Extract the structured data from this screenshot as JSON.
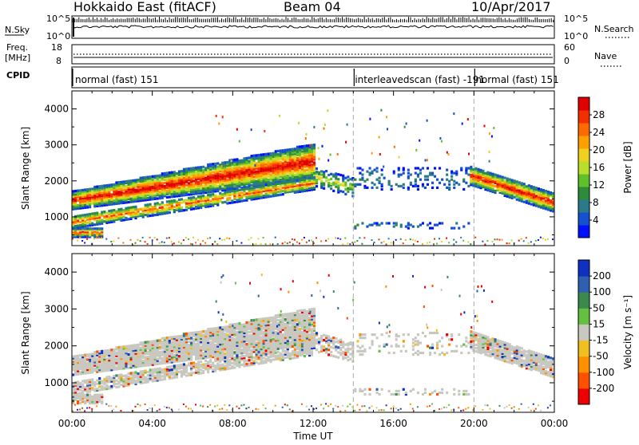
{
  "header": {
    "station": "Hokkaido East (fitACF)",
    "beam": "Beam 04",
    "date": "10/Apr/2017"
  },
  "strips": {
    "nsky_label": "N.Sky",
    "nsky_top": "10^5",
    "nsky_bottom": "10^0",
    "nsearch_label": "N.Search",
    "nsearch_top": "10^5",
    "nsearch_bottom": "10^0",
    "freq_label_1": "Freq.",
    "freq_label_2": "[MHz]",
    "freq_top": "18",
    "freq_bottom": "8",
    "nave_label": "Nave",
    "nave_top": "60",
    "nave_bottom": "0",
    "cpid_label": "CPID",
    "modes": [
      {
        "label": "normal (fast) 151",
        "start_hour": 0
      },
      {
        "label": "interleavedscan (fast) -191",
        "start_hour": 14
      },
      {
        "label": "normal (fast) 151",
        "start_hour": 20
      }
    ]
  },
  "chart_data": [
    {
      "type": "heatmap",
      "name": "power-panel",
      "ylabel": "Slant Range [km]",
      "xlabel": "Time UT",
      "xlim": [
        0,
        24
      ],
      "ylim": [
        200,
        4500
      ],
      "x_ticks": [
        "00:00",
        "04:00",
        "08:00",
        "12:00",
        "16:00",
        "20:00",
        "00:00"
      ],
      "y_ticks": [
        1000,
        2000,
        3000,
        4000
      ],
      "colorbar": {
        "label": "Power [dB]",
        "ticks": [
          "4",
          "8",
          "12",
          "16",
          "20",
          "24",
          "28"
        ],
        "colors": [
          "#0010ff",
          "#1550d0",
          "#2a7a8a",
          "#2e8b3c",
          "#5fc02a",
          "#b8e02a",
          "#f0d020",
          "#ffa000",
          "#ff6a00",
          "#f03000",
          "#e00000"
        ]
      },
      "mode_boundaries_hours": [
        14,
        20
      ]
    },
    {
      "type": "heatmap",
      "name": "velocity-panel",
      "ylabel": "Slant Range [km]",
      "xlabel": "Time UT",
      "xlim": [
        0,
        24
      ],
      "ylim": [
        200,
        4500
      ],
      "x_ticks": [
        "00:00",
        "04:00",
        "08:00",
        "12:00",
        "16:00",
        "20:00",
        "00:00"
      ],
      "y_ticks": [
        1000,
        2000,
        3000,
        4000
      ],
      "colorbar": {
        "label": "Velocity [m s⁻¹]",
        "ticks": [
          "200",
          "100",
          "50",
          "15",
          "-15",
          "-50",
          "-100",
          "-200"
        ],
        "colors": [
          "#1030c0",
          "#2f5fb0",
          "#3a8a50",
          "#63c040",
          "#c8c8c0",
          "#f0c020",
          "#ff9000",
          "#ff5000",
          "#ee0000"
        ]
      },
      "mode_boundaries_hours": [
        14,
        20
      ]
    }
  ]
}
